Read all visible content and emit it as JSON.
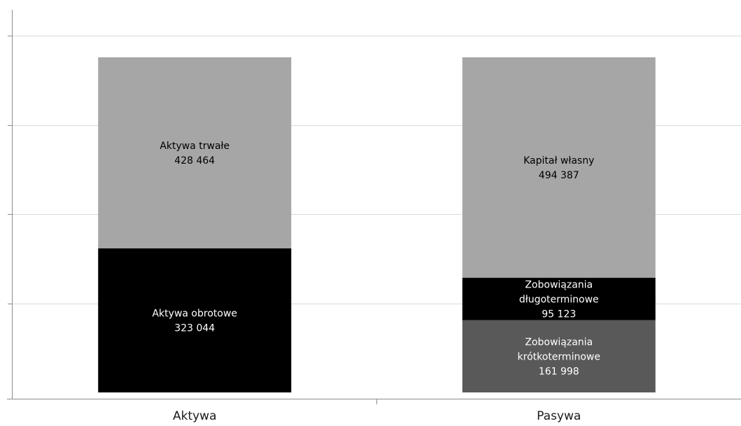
{
  "chart_data": {
    "type": "bar",
    "stacked": true,
    "categories": [
      "Aktywa",
      "Pasywa"
    ],
    "stacks": [
      {
        "category": "Aktywa",
        "segments": [
          {
            "label": "Aktywa obrotowe",
            "value_text": "323 044",
            "value": 323044,
            "color": "#000000",
            "text_color": "#ffffff"
          },
          {
            "label": "Aktywa trwałe",
            "value_text": "428 464",
            "value": 428464,
            "color": "#a6a6a6",
            "text_color": "#000000"
          }
        ]
      },
      {
        "category": "Pasywa",
        "segments": [
          {
            "label": "Zobowiązania krótkoterminowe",
            "value_text": "161 998",
            "value": 161998,
            "color": "#595959",
            "text_color": "#ffffff"
          },
          {
            "label": "Zobowiązania długoterminowe",
            "value_text": "95 123",
            "value": 95123,
            "color": "#000000",
            "text_color": "#ffffff"
          },
          {
            "label": "Kapitał własny",
            "value_text": "494 387",
            "value": 494387,
            "color": "#a6a6a6",
            "text_color": "#000000"
          }
        ]
      }
    ],
    "ylim": [
      0,
      800000
    ],
    "ytick_step": 200000,
    "grid": true,
    "legend": "none",
    "title": "",
    "xlabel": "",
    "ylabel": ""
  }
}
